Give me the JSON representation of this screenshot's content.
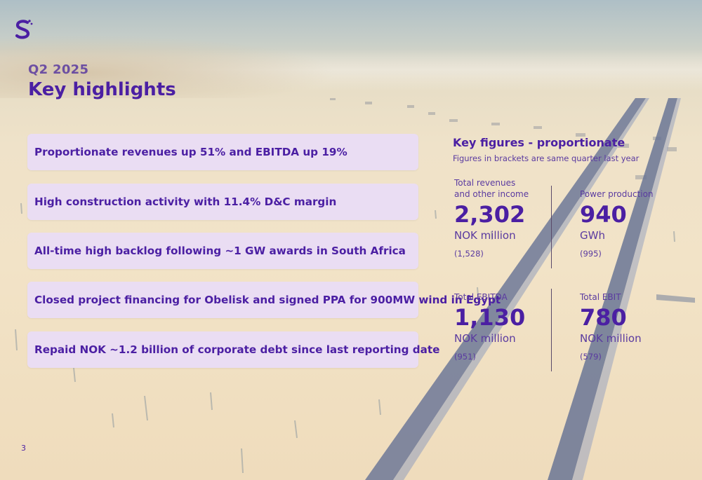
{
  "header": {
    "quarter": "Q2 2025",
    "title": "Key highlights"
  },
  "highlights": [
    "Proportionate revenues up 51% and EBITDA up 19%",
    "High construction activity with 11.4% D&C margin",
    "All-time high backlog following ~1 GW awards in South Africa",
    "Closed project financing for Obelisk and signed PPA for 900MW wind in Egypt",
    "Repaid NOK ~1.2 billion of corporate debt since last reporting date"
  ],
  "key_figures": {
    "title": "Key figures - proportionate",
    "subtitle": "Figures in brackets are same quarter last year",
    "metrics": [
      {
        "label_line1": "Total revenues",
        "label_line2": "and other income",
        "value": "2,302",
        "unit": "NOK million",
        "previous": "(1,528)"
      },
      {
        "label_line1": "Power production",
        "value": "940",
        "unit": "GWh",
        "previous": "(995)"
      },
      {
        "label_line1": "Total EBITDA",
        "value": "1,130",
        "unit": "NOK million",
        "previous": "(951)"
      },
      {
        "label_line1": "Total EBIT",
        "value": "780",
        "unit": "NOK million",
        "previous": "(579)"
      }
    ]
  },
  "footer": {
    "page_number": "3"
  },
  "colors": {
    "brand_purple": "#4b1fa3",
    "card_background": "#e9ddf6"
  },
  "icons": {
    "logo": "s-logo-icon"
  }
}
